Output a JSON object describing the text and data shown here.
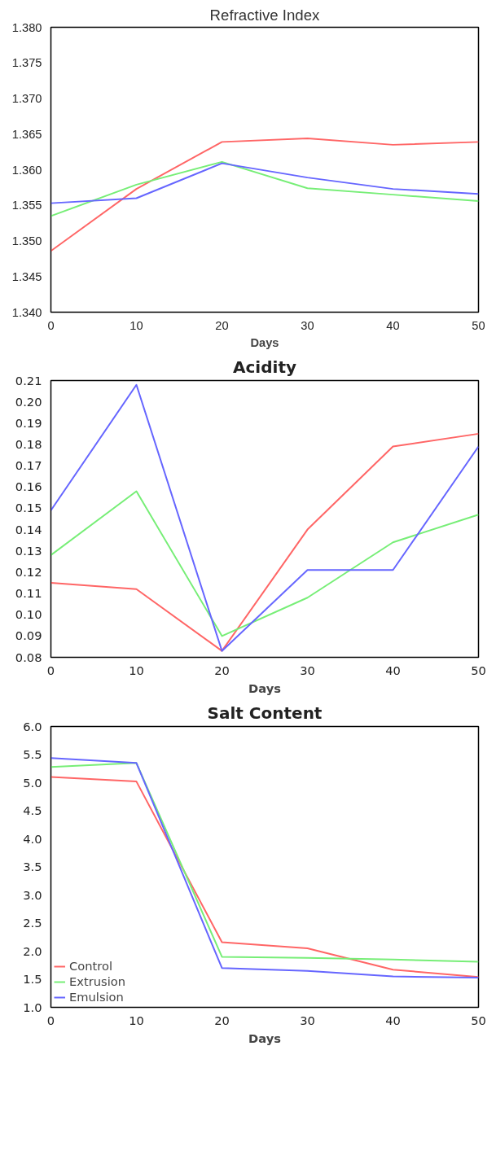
{
  "chart_data": [
    {
      "type": "line",
      "title": "Refractive Index",
      "xlabel": "Days",
      "x": [
        0,
        10,
        20,
        30,
        40,
        50
      ],
      "xlim": [
        0,
        50
      ],
      "xticks": [
        0,
        10,
        20,
        30,
        40,
        50
      ],
      "ylim": [
        1.34,
        1.38
      ],
      "yticks": [
        {
          "value": 1.34,
          "label": "1.340"
        },
        {
          "value": 1.345,
          "label": "1.345"
        },
        {
          "value": 1.35,
          "label": "1.350"
        },
        {
          "value": 1.355,
          "label": "1.355"
        },
        {
          "value": 1.36,
          "label": "1.360"
        },
        {
          "value": 1.365,
          "label": "1.365"
        },
        {
          "value": 1.37,
          "label": "1.370"
        },
        {
          "value": 1.375,
          "label": "1.375"
        },
        {
          "value": 1.38,
          "label": "1.380"
        }
      ],
      "grid": false,
      "series": [
        {
          "color": "#ff6666",
          "values": [
            1.3486,
            1.3573,
            1.3639,
            1.3644,
            1.3635,
            1.3639
          ]
        },
        {
          "color": "#77ee77",
          "values": [
            1.3535,
            1.3579,
            1.3611,
            1.3574,
            1.3565,
            1.3556
          ]
        },
        {
          "color": "#6666ff",
          "values": [
            1.3553,
            1.356,
            1.3609,
            1.3589,
            1.3573,
            1.3566
          ]
        }
      ]
    },
    {
      "type": "line",
      "title": "Acidity",
      "xlabel": "Days",
      "x": [
        0,
        10,
        20,
        30,
        40,
        50
      ],
      "xlim": [
        0,
        50
      ],
      "xticks": [
        0,
        10,
        20,
        30,
        40,
        50
      ],
      "ylim": [
        0.08,
        0.21
      ],
      "yticks": [
        {
          "value": 0.08,
          "label": "0.08"
        },
        {
          "value": 0.09,
          "label": "0.09"
        },
        {
          "value": 0.1,
          "label": "0.10"
        },
        {
          "value": 0.11,
          "label": "0.11"
        },
        {
          "value": 0.12,
          "label": "0.12"
        },
        {
          "value": 0.13,
          "label": "0.13"
        },
        {
          "value": 0.14,
          "label": "0.14"
        },
        {
          "value": 0.15,
          "label": "0.15"
        },
        {
          "value": 0.16,
          "label": "0.16"
        },
        {
          "value": 0.17,
          "label": "0.17"
        },
        {
          "value": 0.18,
          "label": "0.18"
        },
        {
          "value": 0.19,
          "label": "0.19"
        },
        {
          "value": 0.2,
          "label": "0.20"
        },
        {
          "value": 0.21,
          "label": "0.21"
        }
      ],
      "grid": false,
      "series": [
        {
          "color": "#ff6666",
          "values": [
            0.115,
            0.112,
            0.083,
            0.14,
            0.179,
            0.185
          ]
        },
        {
          "color": "#77ee77",
          "values": [
            0.128,
            0.158,
            0.09,
            0.108,
            0.134,
            0.147
          ]
        },
        {
          "color": "#6666ff",
          "values": [
            0.149,
            0.208,
            0.083,
            0.121,
            0.121,
            0.179
          ]
        }
      ]
    },
    {
      "type": "line",
      "title": "Salt Content",
      "xlabel": "Days",
      "x": [
        0,
        10,
        20,
        30,
        40,
        50
      ],
      "xlim": [
        0,
        50
      ],
      "xticks": [
        0,
        10,
        20,
        30,
        40,
        50
      ],
      "ylim": [
        1.0,
        6.0
      ],
      "yticks": [
        {
          "value": 1,
          "label": "1.0"
        },
        {
          "value": 1.5,
          "label": "1.5"
        },
        {
          "value": 2,
          "label": "2.0"
        },
        {
          "value": 2.5,
          "label": "2.5"
        },
        {
          "value": 3,
          "label": "3.0"
        },
        {
          "value": 3.5,
          "label": "3.5"
        },
        {
          "value": 4,
          "label": "4.0"
        },
        {
          "value": 4.5,
          "label": "4.5"
        },
        {
          "value": 5,
          "label": "5.0"
        },
        {
          "value": 5.5,
          "label": "5.5"
        },
        {
          "value": 6,
          "label": "6.0"
        }
      ],
      "grid": false,
      "legend": "bottom left",
      "series": [
        {
          "name": "Control",
          "color": "#ff6666",
          "values": [
            5.1,
            5.02,
            2.16,
            2.05,
            1.67,
            1.54
          ]
        },
        {
          "name": "Extrusion",
          "color": "#77ee77",
          "values": [
            5.28,
            5.35,
            1.9,
            1.88,
            1.85,
            1.81
          ]
        },
        {
          "name": "Emulsion",
          "color": "#6666ff",
          "values": [
            5.44,
            5.35,
            1.7,
            1.65,
            1.55,
            1.53
          ]
        }
      ]
    }
  ]
}
